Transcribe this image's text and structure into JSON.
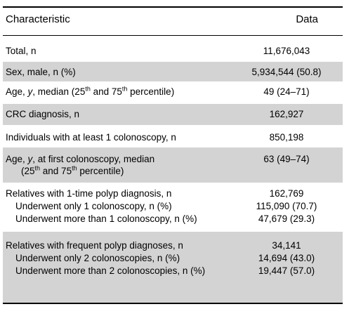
{
  "header": {
    "characteristic": "Characteristic",
    "data": "Data"
  },
  "rows": [
    {
      "label": "Total, n",
      "value": "11,676,043"
    },
    {
      "label": "Sex, male, n (%)",
      "value": "5,934,544 (50.8)"
    },
    {
      "label_pre": "Age, ",
      "label_y": "y",
      "label_mid": ", median (25",
      "sup1": "th",
      "label_mid2": " and 75",
      "sup2": "th",
      "label_post": " percentile)",
      "value": "49 (24–71)"
    },
    {
      "label": "CRC diagnosis, n",
      "value": "162,927"
    },
    {
      "label": "Individuals with at least 1 colonoscopy, n",
      "value": "850,198"
    },
    {
      "label_pre": "Age, ",
      "label_y": "y",
      "label_mid": ", at first colonoscopy, median",
      "line2_pre": "(25",
      "sup1": "th",
      "line2_mid": " and 75",
      "sup2": "th",
      "line2_post": " percentile)",
      "value": "63 (49–74)"
    },
    {
      "label": "Relatives with 1-time polyp diagnosis, n",
      "value": "162,769",
      "sub": [
        {
          "label": "Underwent only 1 colonoscopy, n (%)",
          "value": "115,090 (70.7)"
        },
        {
          "label": "Underwent more than 1 colonoscopy, n (%)",
          "value": "47,679 (29.3)"
        }
      ]
    },
    {
      "label": "Relatives with frequent polyp diagnoses, n",
      "value": "34,141",
      "sub": [
        {
          "label": "Underwent only 2 colonoscopies, n (%)",
          "value": "14,694 (43.0)"
        },
        {
          "label": "Underwent more than 2 colonoscopies, n (%)",
          "value": "19,447 (57.0)"
        }
      ]
    }
  ]
}
